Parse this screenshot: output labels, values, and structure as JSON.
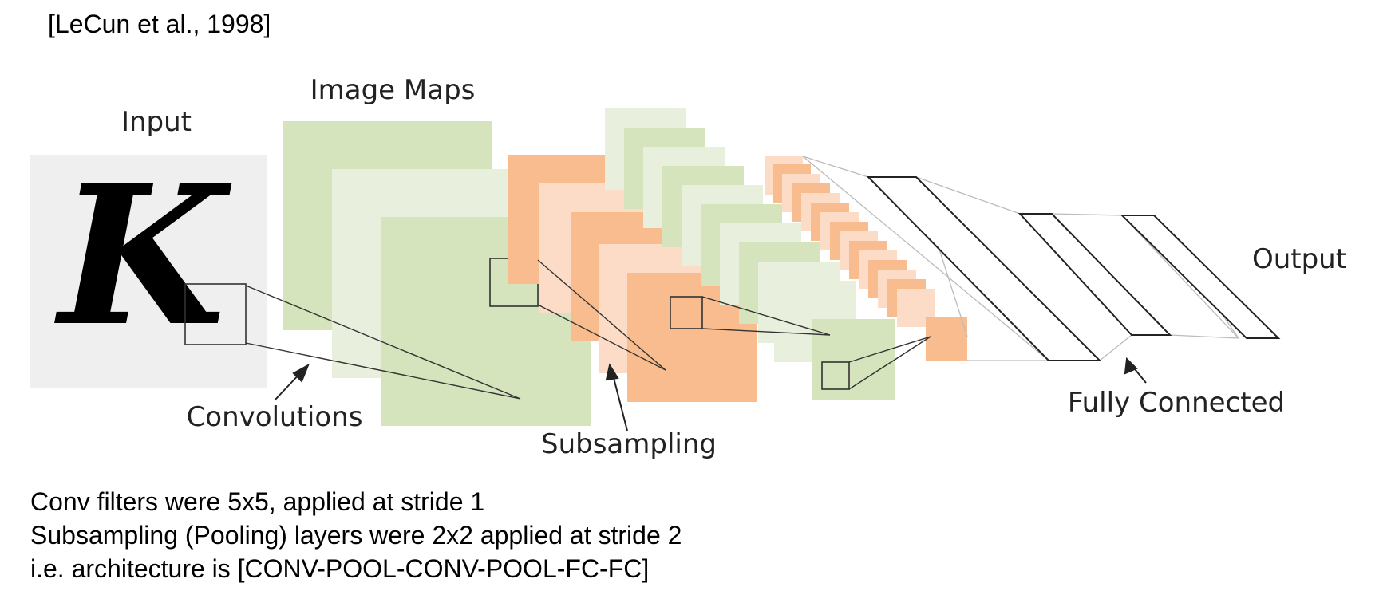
{
  "citation": "[LeCun et al., 1998]",
  "input_glyph": "K",
  "labels": {
    "input": "Input",
    "image_maps": "Image Maps",
    "convolutions": "Convolutions",
    "subsampling": "Subsampling",
    "fully_connected": "Fully Connected",
    "output": "Output"
  },
  "notes": [
    "Conv filters were 5x5, applied at stride 1",
    "Subsampling (Pooling) layers were 2x2 applied at stride 2",
    "i.e. architecture is [CONV-POOL-CONV-POOL-FC-FC]"
  ],
  "colors": {
    "input_bg": "#efefef",
    "conv_green": "#d6e4bd",
    "conv_green_light": "#e8efdc",
    "pool_orange": "#f8bc8f",
    "pool_orange_light": "#fcdcc6",
    "line": "#333333",
    "fc_line": "#bbbbbb"
  }
}
